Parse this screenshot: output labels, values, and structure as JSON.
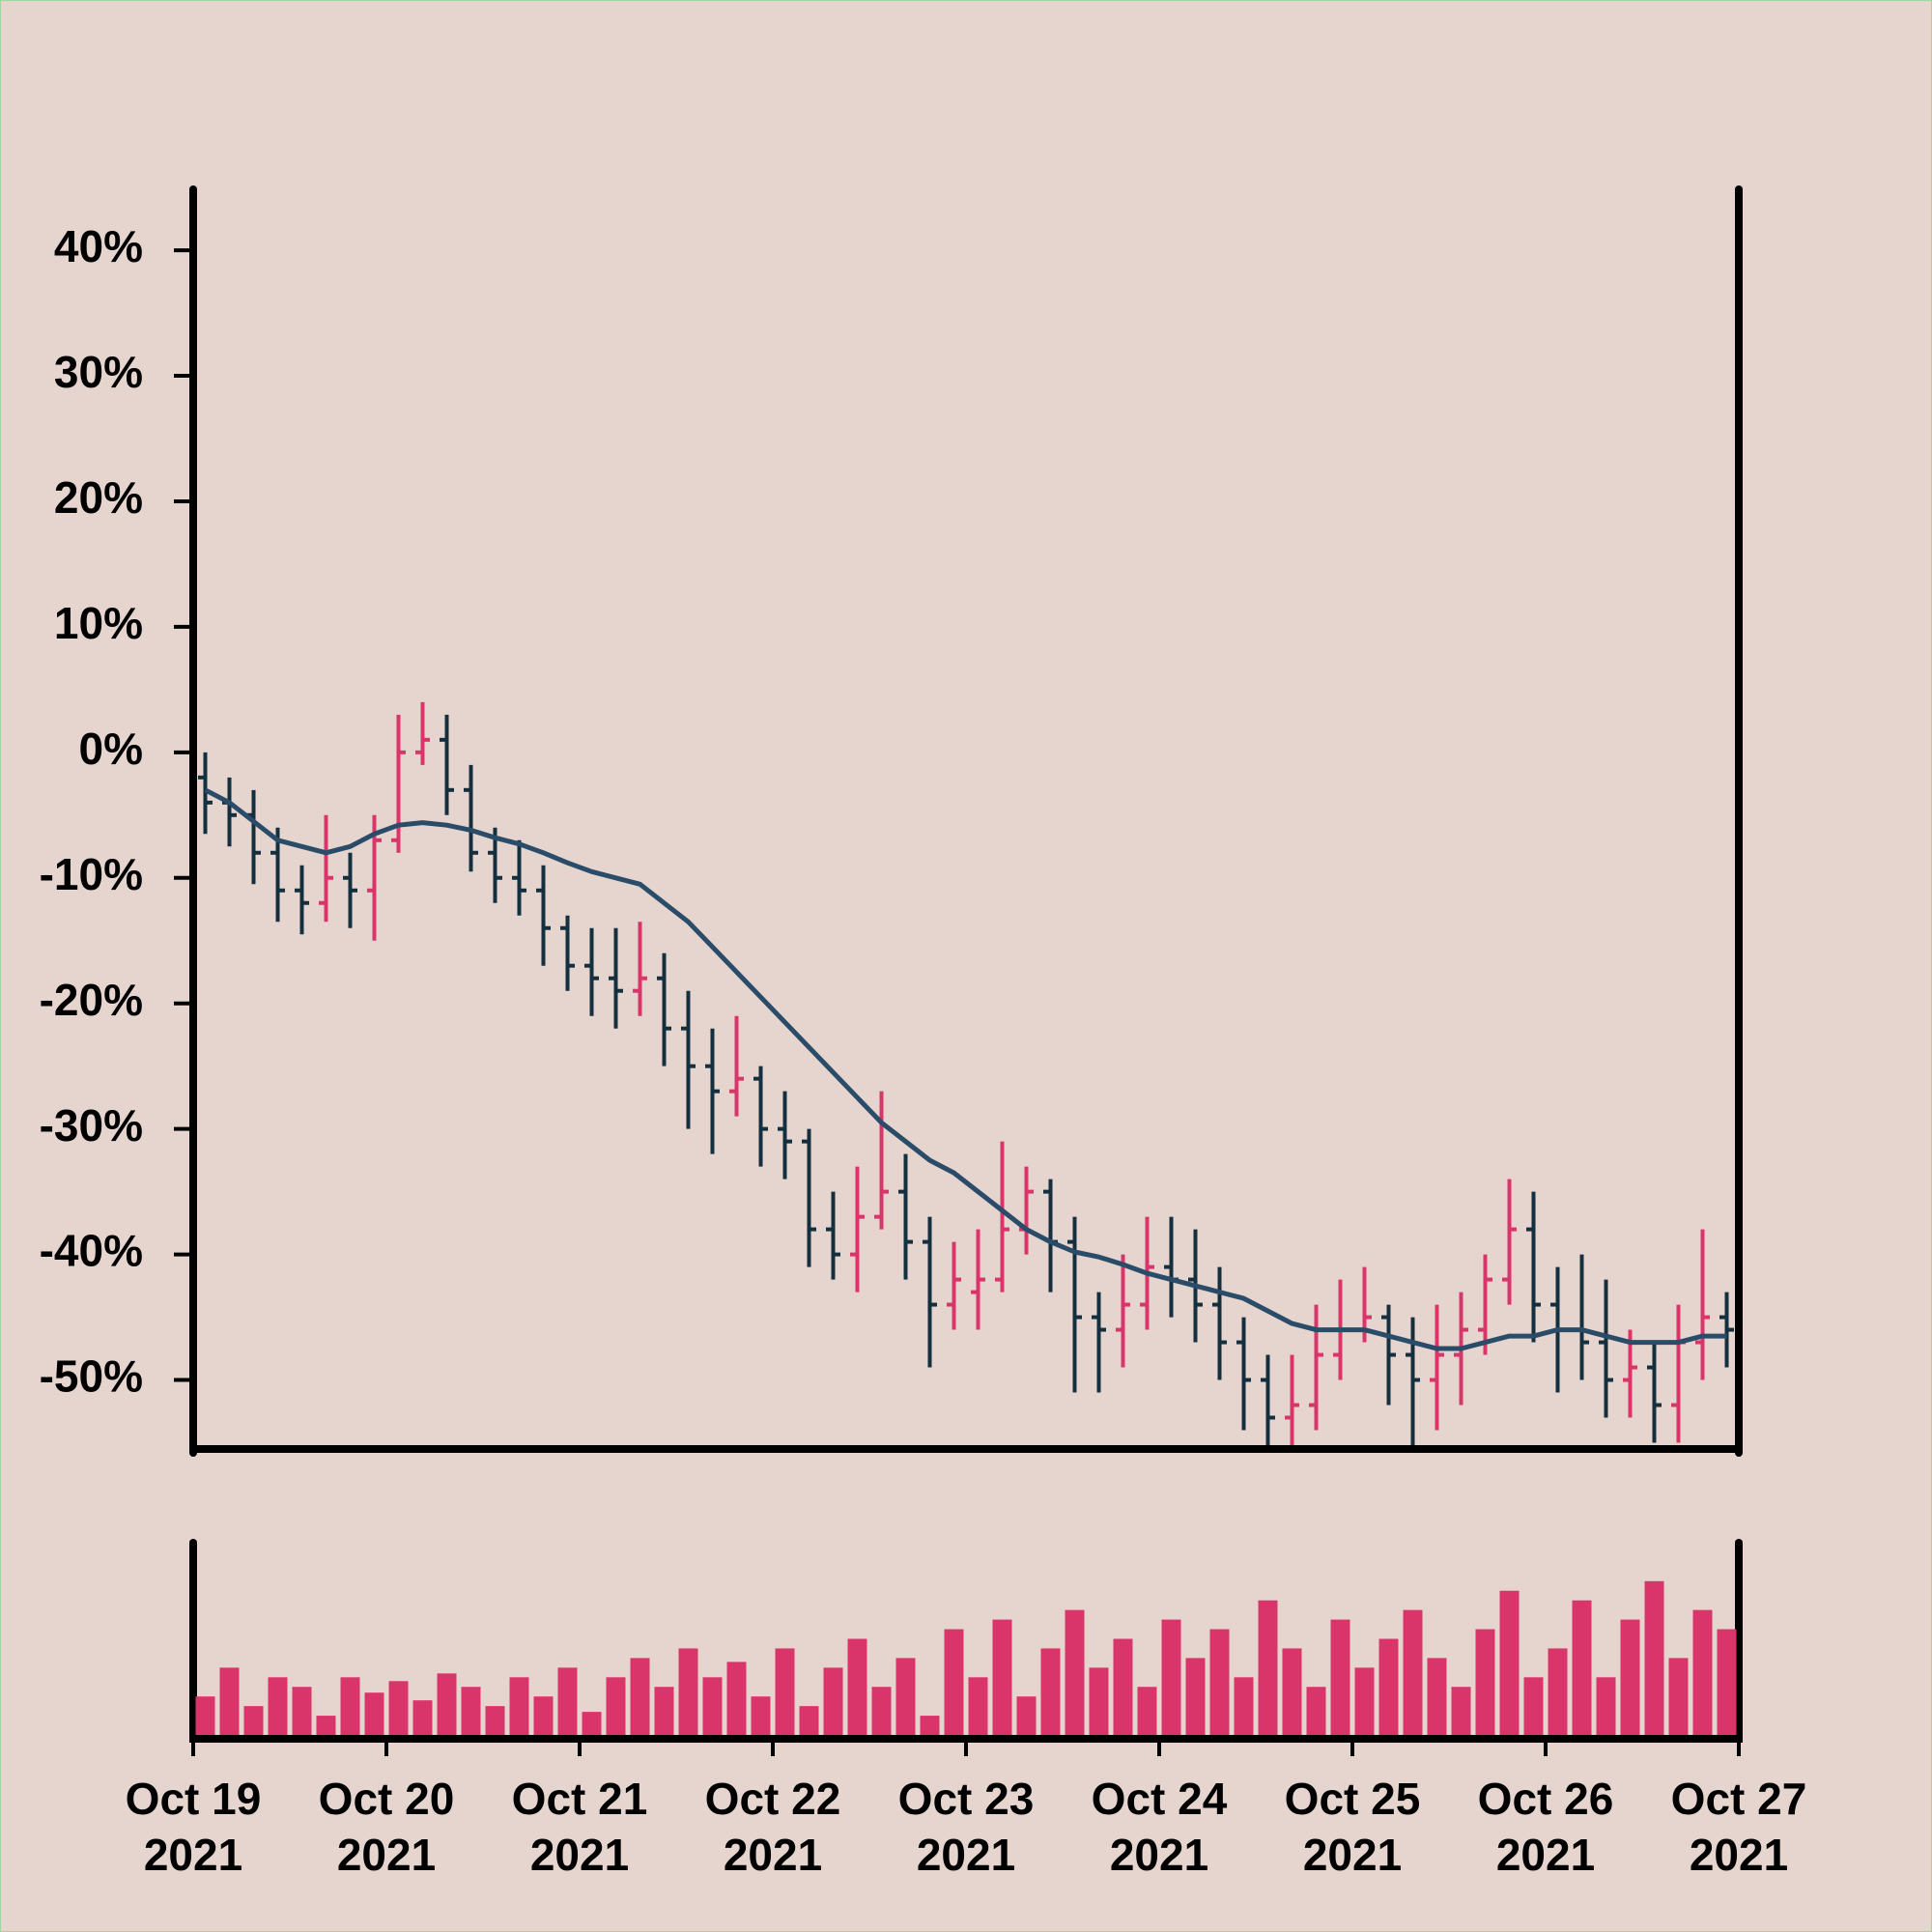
{
  "chart_data": {
    "type": "ohlc",
    "x": [
      0.0625,
      0.1875,
      0.3125,
      0.4375,
      0.5625,
      0.6875,
      0.8125,
      0.9375,
      1.0625,
      1.1875,
      1.3125,
      1.4375,
      1.5625,
      1.6875,
      1.8125,
      1.9375,
      2.0625,
      2.1875,
      2.3125,
      2.4375,
      2.5625,
      2.6875,
      2.8125,
      2.9375,
      3.0625,
      3.1875,
      3.3125,
      3.4375,
      3.5625,
      3.6875,
      3.8125,
      3.9375,
      4.0625,
      4.1875,
      4.3125,
      4.4375,
      4.5625,
      4.6875,
      4.8125,
      4.9375,
      5.0625,
      5.1875,
      5.3125,
      5.4375,
      5.5625,
      5.6875,
      5.8125,
      5.9375,
      6.0625,
      6.1875,
      6.3125,
      6.4375,
      6.5625,
      6.6875,
      6.8125,
      6.9375,
      7.0625,
      7.1875,
      7.3125,
      7.4375,
      7.5625,
      7.6875,
      7.8125,
      7.9375
    ],
    "open": [
      -2,
      -4,
      -5,
      -8,
      -11,
      -12,
      -10,
      -11,
      -7,
      0,
      1,
      -3,
      -8,
      -10,
      -11,
      -14,
      -17,
      -18,
      -19,
      -18,
      -22,
      -25,
      -27,
      -26,
      -30,
      -31,
      -38,
      -40,
      -37,
      -35,
      -39,
      -44,
      -43,
      -42,
      -38,
      -35,
      -39,
      -45,
      -46,
      -44,
      -41,
      -42,
      -44,
      -47,
      -50,
      -53,
      -52,
      -48,
      -46,
      -45,
      -48,
      -50,
      -48,
      -46,
      -42,
      -38,
      -44,
      -46,
      -47,
      -50,
      -49,
      -52,
      -47,
      -45
    ],
    "high": [
      0,
      -2,
      -3,
      -6,
      -9,
      -5,
      -8,
      -5,
      3,
      4,
      3,
      -1,
      -6,
      -7,
      -9,
      -13,
      -14,
      -14,
      -13.5,
      -16,
      -19,
      -22,
      -21,
      -25,
      -27,
      -30,
      -35,
      -33,
      -27,
      -32,
      -37,
      -39,
      -38,
      -31,
      -33,
      -34,
      -37,
      -43,
      -40,
      -37,
      -37,
      -38,
      -41,
      -45,
      -48,
      -48,
      -44,
      -42,
      -41,
      -44,
      -45,
      -44,
      -43,
      -40,
      -34,
      -35,
      -41,
      -40,
      -42,
      -46,
      -47,
      -44,
      -38,
      -43
    ],
    "low": [
      -6.5,
      -7.5,
      -10.5,
      -13.5,
      -14.5,
      -13.5,
      -14,
      -15,
      -8,
      -1,
      -5,
      -9.5,
      -12,
      -13,
      -17,
      -19,
      -21,
      -22,
      -21,
      -25,
      -30,
      -32,
      -29,
      -33,
      -34,
      -41,
      -42,
      -43,
      -38,
      -42,
      -49,
      -46,
      -46,
      -43,
      -40,
      -43,
      -51,
      -51,
      -49,
      -46,
      -45,
      -47,
      -50,
      -54,
      -56,
      -56,
      -54,
      -50,
      -47,
      -52,
      -56,
      -54,
      -52,
      -48,
      -44,
      -47,
      -51,
      -50,
      -53,
      -53,
      -55,
      -55,
      -50,
      -49
    ],
    "close": [
      -4,
      -5,
      -8,
      -11,
      -12,
      -10,
      -11,
      -7,
      0,
      1,
      -3,
      -8,
      -10,
      -11,
      -14,
      -17,
      -18,
      -19,
      -18,
      -22,
      -25,
      -27,
      -26,
      -30,
      -31,
      -38,
      -40,
      -37,
      -35,
      -39,
      -44,
      -42,
      -42,
      -38,
      -35,
      -39,
      -45,
      -46,
      -44,
      -41,
      -42,
      -44,
      -47,
      -50,
      -53,
      -52,
      -48,
      -46,
      -45,
      -48,
      -50,
      -48,
      -46,
      -42,
      -38,
      -44,
      -46,
      -47,
      -50,
      -49,
      -52,
      -47,
      -45,
      -46
    ],
    "up_color": "#d9356a",
    "down_color": "#14303f",
    "moving_average": {
      "color": "#2b4c69",
      "values": [
        -3,
        -4,
        -5.5,
        -7,
        -7.5,
        -8,
        -7.5,
        -6.5,
        -5.8,
        -5.6,
        -5.8,
        -6.2,
        -6.8,
        -7.3,
        -8,
        -8.8,
        -9.5,
        -10,
        -10.5,
        -12,
        -13.5,
        -15.5,
        -17.5,
        -19.5,
        -21.5,
        -23.5,
        -25.5,
        -27.5,
        -29.5,
        -31,
        -32.5,
        -33.5,
        -35,
        -36.5,
        -38,
        -39,
        -39.8,
        -40.2,
        -40.8,
        -41.5,
        -42,
        -42.5,
        -43,
        -43.5,
        -44.5,
        -45.5,
        -46,
        -46,
        -46,
        -46.5,
        -47,
        -47.5,
        -47.5,
        -47,
        -46.5,
        -46.5,
        -46,
        -46,
        -46.5,
        -47,
        -47,
        -47,
        -46.5,
        -46.5
      ]
    },
    "volume": {
      "color": "#d9356a",
      "ylim": [
        0,
        100
      ],
      "values": [
        20,
        35,
        15,
        30,
        25,
        10,
        30,
        22,
        28,
        18,
        32,
        25,
        15,
        30,
        20,
        35,
        12,
        30,
        40,
        25,
        45,
        30,
        38,
        20,
        45,
        15,
        35,
        50,
        25,
        40,
        10,
        55,
        30,
        60,
        20,
        45,
        65,
        35,
        50,
        25,
        60,
        40,
        55,
        30,
        70,
        45,
        25,
        60,
        35,
        50,
        65,
        40,
        25,
        55,
        75,
        30,
        45,
        70,
        30,
        60,
        80,
        40,
        65,
        55
      ]
    },
    "xlim": [
      0,
      8
    ],
    "xticks": [
      {
        "value": 0,
        "label": "Oct 19 2021"
      },
      {
        "value": 1,
        "label": "Oct 20 2021"
      },
      {
        "value": 2,
        "label": "Oct 21 2021"
      },
      {
        "value": 3,
        "label": "Oct 22 2021"
      },
      {
        "value": 4,
        "label": "Oct 23 2021"
      },
      {
        "value": 5,
        "label": "Oct 24 2021"
      },
      {
        "value": 6,
        "label": "Oct 25 2021"
      },
      {
        "value": 7,
        "label": "Oct 26 2021"
      },
      {
        "value": 8,
        "label": "Oct 27 2021"
      }
    ],
    "ylim": [
      -55.5,
      44.7
    ],
    "yticks": [
      {
        "value": 40,
        "label": "40%"
      },
      {
        "value": 30,
        "label": "30%"
      },
      {
        "value": 20,
        "label": "20%"
      },
      {
        "value": 10,
        "label": "10%"
      },
      {
        "value": 0,
        "label": "0%"
      },
      {
        "value": -10,
        "label": "-10%"
      },
      {
        "value": -20,
        "label": "-20%"
      },
      {
        "value": -30,
        "label": "-30%"
      },
      {
        "value": -40,
        "label": "-40%"
      },
      {
        "value": -50,
        "label": "-50%"
      }
    ]
  }
}
